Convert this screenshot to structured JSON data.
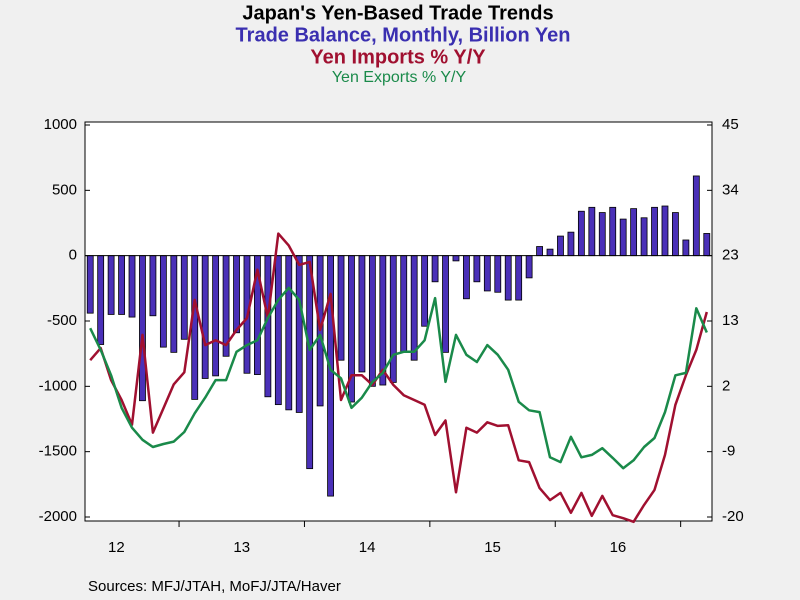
{
  "chart_data": {
    "type": "bar-line",
    "title": "Japan's Yen-Based Trade Trends",
    "subtitles": [
      {
        "text": "Trade Balance, Monthly, Billion Yen",
        "color": "#3a2fb0"
      },
      {
        "text": "Yen Imports % Y/Y",
        "color": "#a01030"
      },
      {
        "text": "Yen Exports % Y/Y",
        "color": "#1a8a4a"
      }
    ],
    "source": "Sources:  MFJ/JTAH, MoFJ/JTA/Haver",
    "categories": [
      null,
      null,
      null,
      "12",
      null,
      null,
      null,
      null,
      null,
      null,
      null,
      null,
      null,
      null,
      null,
      "13",
      null,
      null,
      null,
      null,
      null,
      null,
      null,
      null,
      null,
      null,
      null,
      "14",
      null,
      null,
      null,
      null,
      null,
      null,
      null,
      null,
      null,
      null,
      null,
      "15",
      null,
      null,
      null,
      null,
      null,
      null,
      null,
      null,
      null,
      null,
      null,
      "16",
      null,
      null,
      null,
      null,
      null,
      null,
      null,
      null
    ],
    "series": [
      {
        "name": "Trade Balance, Monthly, Billion Yen",
        "type": "bar",
        "axis": "y",
        "color": "#4a30b8",
        "values": [
          -440,
          -680,
          -450,
          -450,
          -470,
          -1110,
          -460,
          -700,
          -740,
          -640,
          -1100,
          -940,
          -920,
          -770,
          -590,
          -900,
          -910,
          -1080,
          -1140,
          -1180,
          -1200,
          -1630,
          -1150,
          -1840,
          -800,
          -1120,
          -890,
          -1000,
          -990,
          -970,
          -740,
          -800,
          -540,
          -200,
          -740,
          -40,
          -330,
          -200,
          -270,
          -280,
          -340,
          -340,
          -170,
          70,
          50,
          150,
          180,
          340,
          370,
          330,
          370,
          280,
          360,
          290,
          370,
          380,
          330,
          120,
          610,
          170
        ]
      },
      {
        "name": "Yen Imports % Y/Y",
        "type": "line",
        "axis": "y2",
        "color": "#a01030",
        "values": [
          6,
          8,
          2.7,
          -0.6,
          -4.7,
          10.2,
          -6,
          -2,
          2,
          4,
          16,
          8.5,
          9.3,
          8.5,
          11,
          13,
          21,
          13,
          27,
          25,
          21.8,
          22.3,
          11,
          17,
          -0.6,
          3.5,
          3.5,
          1.9,
          4.4,
          1.9,
          0.2,
          -0.6,
          -1.4,
          -6.4,
          -4,
          -15.9,
          -5.2,
          -6,
          -4.3,
          -4.9,
          -4.8,
          -10.6,
          -10.9,
          -15.2,
          -17.2,
          -16,
          -19.3,
          -16,
          -19.8,
          -16.5,
          -19.7,
          -20.2,
          -20.8,
          -18,
          -15.5,
          -9.7,
          -1.4,
          3.5,
          7.7,
          14
        ]
      },
      {
        "name": "Yen Exports % Y/Y",
        "type": "line",
        "axis": "y2",
        "color": "#1a8a4a",
        "values": [
          11.3,
          7.7,
          3.5,
          -1.9,
          -5.2,
          -7.2,
          -8.4,
          -7.9,
          -7.5,
          -5.9,
          -2.8,
          -0.2,
          2.7,
          2.7,
          7.4,
          8.5,
          9.3,
          13,
          16,
          18,
          16,
          7.7,
          10.2,
          4.4,
          3,
          -1.9,
          -0.2,
          2.4,
          3.9,
          6.9,
          7.4,
          7.4,
          9.3,
          16.3,
          2.4,
          10.2,
          6.9,
          5.7,
          8.5,
          6.9,
          4.4,
          -0.9,
          -2.3,
          -2.6,
          -10.1,
          -10.9,
          -6.7,
          -10.1,
          -9.7,
          -8.6,
          -10.2,
          -11.9,
          -10.6,
          -8.4,
          -6.9,
          -2.6,
          3.5,
          3.9,
          14.6,
          10.6
        ]
      }
    ],
    "ylim": [
      -2000,
      1000
    ],
    "yticks": [
      1000,
      500,
      0,
      -500,
      -1000,
      -1500,
      -2000
    ],
    "y2lim": [
      -20,
      45
    ],
    "y2ticks": [
      45,
      {
        "value": 34.1667,
        "label": "34"
      },
      {
        "value": 23.3333,
        "label": "23"
      },
      {
        "value": 12.5,
        "label": "13"
      },
      {
        "value": 1.6667,
        "label": "2"
      },
      {
        "value": -9.1667,
        "label": "-9"
      },
      -20
    ],
    "grid": false
  }
}
